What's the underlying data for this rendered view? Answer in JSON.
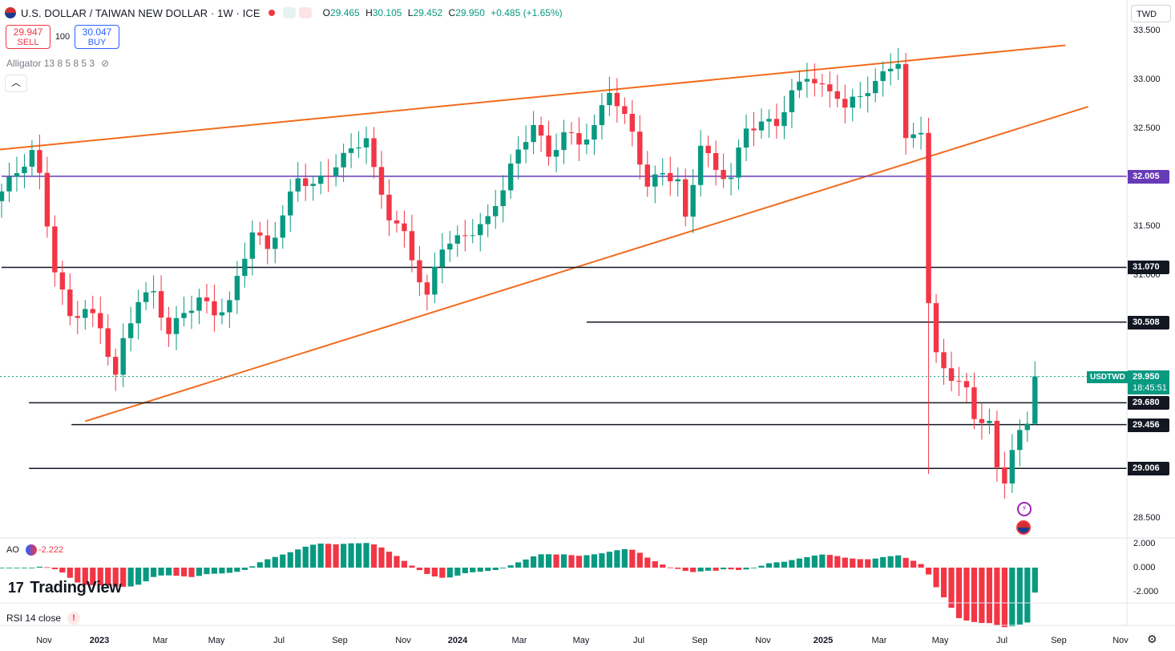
{
  "header": {
    "title": "U.S. DOLLAR / TAIWAN NEW DOLLAR · 1W · ICE",
    "ohlc": {
      "o_label": "O",
      "o": "29.465",
      "h_label": "H",
      "h": "30.105",
      "l_label": "L",
      "l": "29.452",
      "c_label": "C",
      "c": "29.950",
      "change": "+0.485 (+1.65%)"
    }
  },
  "trade": {
    "sell_price": "29.947",
    "sell_label": "SELL",
    "qty": "100",
    "buy_price": "30.047",
    "buy_label": "BUY"
  },
  "indicator": {
    "label": "Alligator 13 8 5 8 5 3"
  },
  "currency_button": "TWD",
  "price_axis": [
    "33.500",
    "33.000",
    "32.500",
    "31.500",
    "31.000",
    "28.500"
  ],
  "level_tags": {
    "l32005": "32.005",
    "l31070": "31.070",
    "l30508": "30.508",
    "l29680": "29.680",
    "l29456": "29.456",
    "l29006": "29.006"
  },
  "last_price": {
    "symbol": "USDTWD",
    "price": "29.950",
    "countdown": "18:45:51"
  },
  "time_axis": [
    "Nov",
    "2023",
    "Mar",
    "May",
    "Jul",
    "Sep",
    "Nov",
    "2024",
    "Mar",
    "May",
    "Jul",
    "Sep",
    "Nov",
    "2025",
    "Mar",
    "May",
    "Jul",
    "Sep",
    "Nov"
  ],
  "ao": {
    "label": "AO",
    "value": "-2.222",
    "ticks": [
      "2.000",
      "0.000",
      "-2.000"
    ]
  },
  "rsi": {
    "label": "RSI 14 close",
    "warn": "!"
  },
  "logo": {
    "text": "TradingView"
  },
  "colors": {
    "up": "#089981",
    "down": "#f23645",
    "trendline": "#f26b1d",
    "support": "#673ab7",
    "level": "#131722"
  },
  "chart_data": {
    "type": "candlestick",
    "title": "U.S. DOLLAR / TAIWAN NEW DOLLAR · 1W · ICE",
    "ylim": [
      28.35,
      33.7
    ],
    "x_range": [
      "2022-10",
      "2025-11"
    ],
    "horizontal_levels": [
      32.005,
      31.07,
      30.508,
      29.68,
      29.456,
      29.006
    ],
    "key_points": {
      "peak_2025_apr": 33.28,
      "low_2025_jun": 28.82,
      "last_close": 29.95
    },
    "last_candle": {
      "open": 29.465,
      "high": 30.105,
      "low": 29.452,
      "close": 29.95,
      "change": 0.485,
      "change_pct": 1.65
    },
    "anchors": [
      [
        0,
        31.85
      ],
      [
        2,
        32.05
      ],
      [
        4,
        32.25
      ],
      [
        5,
        32.0
      ],
      [
        7,
        31.05
      ],
      [
        9,
        30.55
      ],
      [
        11,
        30.65
      ],
      [
        13,
        30.45
      ],
      [
        15,
        29.95
      ],
      [
        16,
        30.3
      ],
      [
        18,
        30.75
      ],
      [
        20,
        30.8
      ],
      [
        22,
        30.4
      ],
      [
        24,
        30.6
      ],
      [
        26,
        30.75
      ],
      [
        28,
        30.6
      ],
      [
        30,
        30.7
      ],
      [
        32,
        31.2
      ],
      [
        33,
        31.45
      ],
      [
        35,
        31.25
      ],
      [
        37,
        31.6
      ],
      [
        39,
        32.0
      ],
      [
        41,
        31.9
      ],
      [
        43,
        32.05
      ],
      [
        45,
        32.2
      ],
      [
        47,
        32.35
      ],
      [
        48,
        32.4
      ],
      [
        49,
        32.05
      ],
      [
        51,
        31.6
      ],
      [
        53,
        31.4
      ],
      [
        55,
        30.95
      ],
      [
        56,
        30.75
      ],
      [
        57,
        31.05
      ],
      [
        58,
        31.3
      ],
      [
        60,
        31.35
      ],
      [
        62,
        31.45
      ],
      [
        64,
        31.55
      ],
      [
        66,
        31.9
      ],
      [
        67,
        32.1
      ],
      [
        69,
        32.4
      ],
      [
        70,
        32.55
      ],
      [
        72,
        32.2
      ],
      [
        74,
        32.45
      ],
      [
        76,
        32.35
      ],
      [
        78,
        32.5
      ],
      [
        80,
        32.9
      ],
      [
        81,
        32.75
      ],
      [
        83,
        32.45
      ],
      [
        85,
        31.9
      ],
      [
        87,
        32.05
      ],
      [
        89,
        31.95
      ],
      [
        90,
        31.55
      ],
      [
        92,
        32.35
      ],
      [
        94,
        32.05
      ],
      [
        96,
        32.0
      ],
      [
        98,
        32.5
      ],
      [
        100,
        32.55
      ],
      [
        102,
        32.55
      ],
      [
        104,
        32.85
      ],
      [
        106,
        33.05
      ],
      [
        108,
        32.9
      ],
      [
        110,
        32.85
      ],
      [
        111,
        32.7
      ],
      [
        113,
        32.85
      ],
      [
        115,
        32.95
      ],
      [
        117,
        33.15
      ],
      [
        118,
        33.18
      ],
      [
        119,
        32.35
      ],
      [
        121,
        32.5
      ],
      [
        122,
        30.7
      ],
      [
        123,
        30.15
      ],
      [
        125,
        29.95
      ],
      [
        127,
        29.8
      ],
      [
        128,
        29.55
      ],
      [
        130,
        29.45
      ],
      [
        131,
        29.0
      ],
      [
        132,
        28.9
      ],
      [
        133,
        29.2
      ],
      [
        134,
        29.35
      ],
      [
        135,
        29.465
      ],
      [
        136,
        29.95
      ]
    ],
    "ao_series": {
      "values_range": [
        -2.3,
        1.2
      ]
    }
  }
}
